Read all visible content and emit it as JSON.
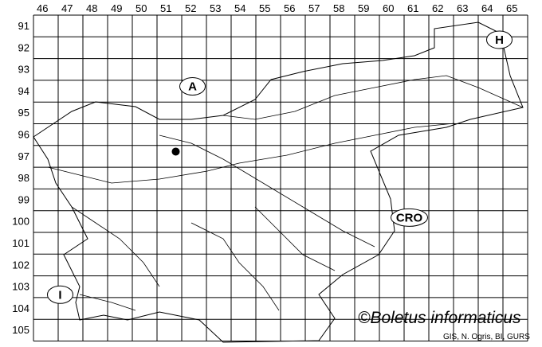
{
  "map": {
    "columns": [
      "46",
      "47",
      "48",
      "49",
      "50",
      "51",
      "52",
      "53",
      "54",
      "55",
      "56",
      "57",
      "58",
      "59",
      "60",
      "61",
      "62",
      "63",
      "64",
      "65"
    ],
    "rows": [
      "91",
      "92",
      "93",
      "94",
      "95",
      "96",
      "97",
      "98",
      "99",
      "100",
      "101",
      "102",
      "103",
      "104",
      "105"
    ],
    "country_labels": [
      {
        "text": "A",
        "near_cell": [
          "52",
          "94"
        ]
      },
      {
        "text": "H",
        "near_cell": [
          "65",
          "92"
        ]
      },
      {
        "text": "CRO",
        "near_cell": [
          "61",
          "100"
        ]
      },
      {
        "text": "I",
        "near_cell": [
          "47",
          "103"
        ]
      }
    ],
    "occurrences": [
      {
        "column": "51",
        "row": "97"
      }
    ],
    "occurrence_color": "#000000",
    "line_color": "#000000"
  },
  "credit": "©Boletus informaticus",
  "source": "GIS, N. Ogris, BI, GURS"
}
